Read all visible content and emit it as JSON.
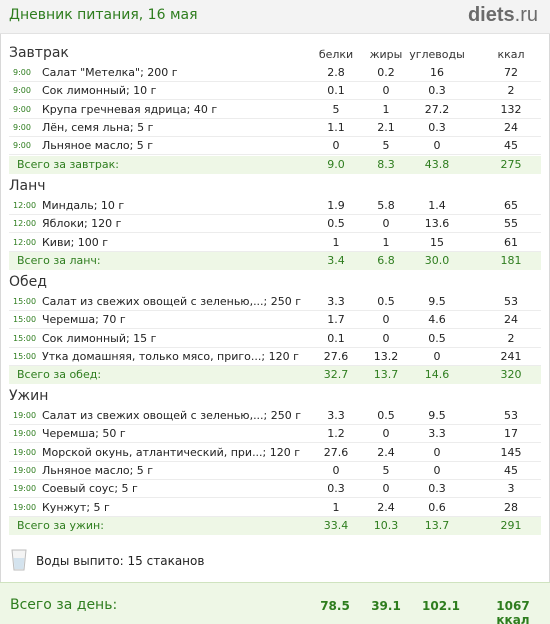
{
  "header": {
    "title": "Дневник питания, 16 мая",
    "logo_main": "diets",
    "logo_tld": ".ru"
  },
  "columns": [
    "белки",
    "жиры",
    "углеводы",
    "ккал"
  ],
  "meals": [
    {
      "title": "Завтрак",
      "items": [
        {
          "time": "9:00",
          "name": "Салат \"Метелка\"; 200 г",
          "p": "2.8",
          "f": "0.2",
          "c": "16",
          "kcal": "72"
        },
        {
          "time": "9:00",
          "name": "Сок лимонный; 10 г",
          "p": "0.1",
          "f": "0",
          "c": "0.3",
          "kcal": "2"
        },
        {
          "time": "9:00",
          "name": "Крупа гречневая ядрица; 40 г",
          "p": "5",
          "f": "1",
          "c": "27.2",
          "kcal": "132"
        },
        {
          "time": "9:00",
          "name": "Лён, семя льна; 5 г",
          "p": "1.1",
          "f": "2.1",
          "c": "0.3",
          "kcal": "24"
        },
        {
          "time": "9:00",
          "name": "Льняное масло; 5 г",
          "p": "0",
          "f": "5",
          "c": "0",
          "kcal": "45"
        }
      ],
      "total": {
        "label": "Всего за завтрак:",
        "p": "9.0",
        "f": "8.3",
        "c": "43.8",
        "kcal": "275"
      }
    },
    {
      "title": "Ланч",
      "items": [
        {
          "time": "12:00",
          "name": "Миндаль; 10 г",
          "p": "1.9",
          "f": "5.8",
          "c": "1.4",
          "kcal": "65"
        },
        {
          "time": "12:00",
          "name": "Яблоки; 120 г",
          "p": "0.5",
          "f": "0",
          "c": "13.6",
          "kcal": "55"
        },
        {
          "time": "12:00",
          "name": "Киви; 100 г",
          "p": "1",
          "f": "1",
          "c": "15",
          "kcal": "61"
        }
      ],
      "total": {
        "label": "Всего за ланч:",
        "p": "3.4",
        "f": "6.8",
        "c": "30.0",
        "kcal": "181"
      }
    },
    {
      "title": "Обед",
      "items": [
        {
          "time": "15:00",
          "name": "Салат из свежих овощей с зеленью,...; 250 г",
          "p": "3.3",
          "f": "0.5",
          "c": "9.5",
          "kcal": "53"
        },
        {
          "time": "15:00",
          "name": "Черемша; 70 г",
          "p": "1.7",
          "f": "0",
          "c": "4.6",
          "kcal": "24"
        },
        {
          "time": "15:00",
          "name": "Сок лимонный; 15 г",
          "p": "0.1",
          "f": "0",
          "c": "0.5",
          "kcal": "2"
        },
        {
          "time": "15:00",
          "name": "Утка домашняя, только мясо, приго...; 120 г",
          "p": "27.6",
          "f": "13.2",
          "c": "0",
          "kcal": "241"
        }
      ],
      "total": {
        "label": "Всего за обед:",
        "p": "32.7",
        "f": "13.7",
        "c": "14.6",
        "kcal": "320"
      }
    },
    {
      "title": "Ужин",
      "items": [
        {
          "time": "19:00",
          "name": "Салат из свежих овощей с зеленью,...; 250 г",
          "p": "3.3",
          "f": "0.5",
          "c": "9.5",
          "kcal": "53"
        },
        {
          "time": "19:00",
          "name": "Черемша; 50 г",
          "p": "1.2",
          "f": "0",
          "c": "3.3",
          "kcal": "17"
        },
        {
          "time": "19:00",
          "name": "Морской окунь, атлантический, при...; 120 г",
          "p": "27.6",
          "f": "2.4",
          "c": "0",
          "kcal": "145"
        },
        {
          "time": "19:00",
          "name": "Льняное масло; 5 г",
          "p": "0",
          "f": "5",
          "c": "0",
          "kcal": "45"
        },
        {
          "time": "19:00",
          "name": "Соевый соус; 5 г",
          "p": "0.3",
          "f": "0",
          "c": "0.3",
          "kcal": "3"
        },
        {
          "time": "19:00",
          "name": "Кунжут; 5 г",
          "p": "1",
          "f": "2.4",
          "c": "0.6",
          "kcal": "28"
        }
      ],
      "total": {
        "label": "Всего за ужин:",
        "p": "33.4",
        "f": "10.3",
        "c": "13.7",
        "kcal": "291"
      }
    }
  ],
  "water": {
    "icon": "glass-icon",
    "text": "Воды выпито: 15 стаканов"
  },
  "day_total": {
    "label": "Всего за день:",
    "p": "78.5",
    "f": "39.1",
    "c": "102.1",
    "kcal": "1067 ккал"
  },
  "colors": {
    "green": "#2e7d1e",
    "total_bg": "#eef7e6"
  }
}
